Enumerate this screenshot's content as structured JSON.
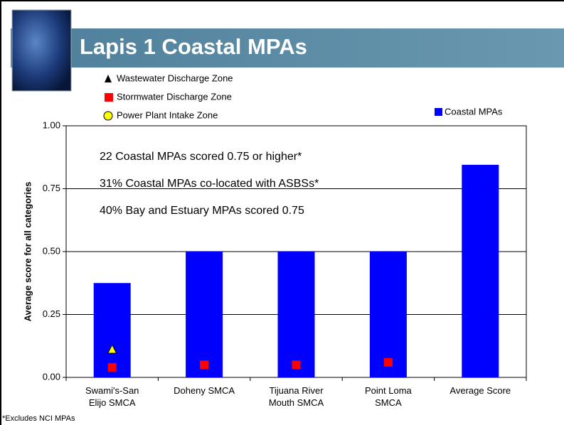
{
  "header": {
    "title": "Lapis 1 Coastal MPAs"
  },
  "chart_data": {
    "type": "bar",
    "ylabel": "Average score for all categories",
    "categories": [
      "Swami's-San\nElijo SMCA",
      "Doheny SMCA",
      "Tijuana River\nMouth SMCA",
      "Point Loma\nSMCA",
      "Average Score"
    ],
    "series": [
      {
        "name": "Coastal MPAs",
        "type": "bar",
        "color": "#0000ff",
        "values": [
          0.375,
          0.5,
          0.5,
          0.5,
          0.845
        ]
      },
      {
        "name": "Wastewater Discharge Zone",
        "type": "scatter",
        "marker": "triangle",
        "color": "#ffff00",
        "values": [
          0.11,
          null,
          null,
          null,
          null
        ]
      },
      {
        "name": "Stormwater Discharge Zone",
        "type": "scatter",
        "marker": "square",
        "color": "#ff0000",
        "values": [
          0.04,
          0.05,
          0.05,
          0.06,
          null
        ]
      },
      {
        "name": "Power Plant Intake Zone",
        "type": "scatter",
        "marker": "circle",
        "color": "#ffff00",
        "values": [
          null,
          null,
          null,
          null,
          null
        ]
      }
    ],
    "ylim": [
      0,
      1
    ],
    "yticks": [
      {
        "value": 0,
        "label": "0.00"
      },
      {
        "value": 0.25,
        "label": "0.25"
      },
      {
        "value": 0.5,
        "label": "0.50"
      },
      {
        "value": 0.75,
        "label": "0.75"
      },
      {
        "value": 1,
        "label": "1.00"
      }
    ],
    "grid": true,
    "annotations": [
      "22 Coastal MPAs scored 0.75 or higher*",
      "31% Coastal MPAs co-located with ASBSs*",
      "40% Bay and Estuary MPAs scored 0.75"
    ],
    "footnote": "*Excludes NCI MPAs"
  }
}
